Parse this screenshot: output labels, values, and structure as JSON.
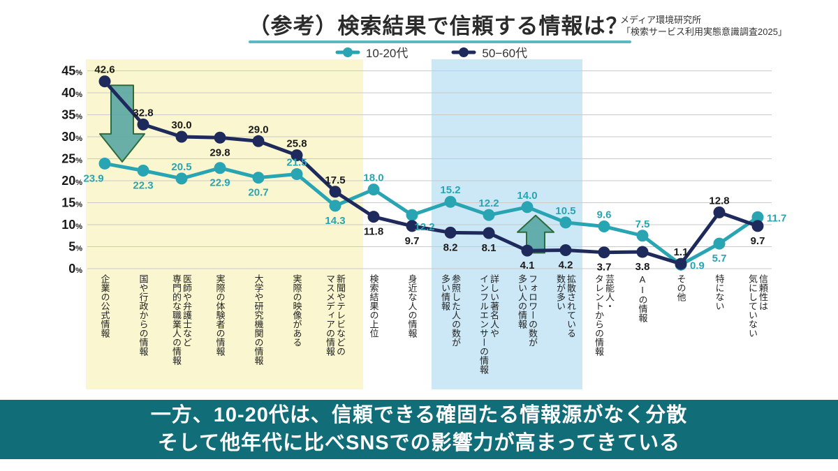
{
  "title": "（参考）検索結果で信頼する情報は？",
  "source": {
    "line1": "メディア環境研究所",
    "line2": "「検索サービス利用実態意識調査2025」"
  },
  "legend": [
    {
      "label": "10-20代",
      "color": "#29a4b2"
    },
    {
      "label": "50−60代",
      "color": "#1f2a5c"
    }
  ],
  "banner": {
    "line1": "一方、10-20代は、信頼できる確固たる情報源がなく分散",
    "line2": "そして他年代に比べSNSでの影響力が高まってきている",
    "bg": "#116e79"
  },
  "chart_data": {
    "type": "line",
    "title": "（参考）検索結果で信頼する情報は？",
    "ylim": [
      0,
      45
    ],
    "ytick_step": 5,
    "ytick_suffix": "%",
    "grid": true,
    "legend_position": "top",
    "categories": [
      [
        "企業の公式情報"
      ],
      [
        "国や行政からの情報"
      ],
      [
        "医師や弁護士など",
        "専門的な職業人の情報"
      ],
      [
        "実際の体験者の情報"
      ],
      [
        "大学や研究機関の情報"
      ],
      [
        "実際の映像がある"
      ],
      [
        "新聞やテレビなどの",
        "マスメディアの情報"
      ],
      [
        "検索結果の上位"
      ],
      [
        "身近な人の情報"
      ],
      [
        "参照した人の数が",
        "多い情報"
      ],
      [
        "詳しい著名人や",
        "インフルエンサーの情報"
      ],
      [
        "フォロワーの数が",
        "多い人の情報"
      ],
      [
        "拡散されている",
        "数が多い"
      ],
      [
        "芸能人・",
        "タレントからの情報"
      ],
      [
        "AIの情報"
      ],
      [
        "その他"
      ],
      [
        "特にない"
      ],
      [
        "信頼性は",
        "気にしていない"
      ]
    ],
    "series": [
      {
        "name": "10-20代",
        "color": "#29a4b2",
        "label_color": "#29a4b2",
        "values": [
          23.9,
          22.3,
          20.5,
          22.9,
          20.7,
          21.5,
          14.3,
          18.0,
          12.2,
          15.2,
          12.2,
          14.0,
          10.5,
          9.6,
          7.5,
          0.9,
          5.7,
          11.7
        ],
        "label_positions": [
          "below-left",
          "below",
          "above",
          "below",
          "below",
          "above",
          "below",
          "above",
          "below-right",
          "above",
          "above",
          "above",
          "above",
          "above",
          "above",
          "right",
          "below",
          "right"
        ]
      },
      {
        "name": "50−60代",
        "color": "#1f2a5c",
        "label_color": "#1a1a1a",
        "values": [
          42.6,
          32.8,
          30.0,
          29.8,
          29.0,
          25.8,
          17.5,
          11.8,
          9.7,
          8.2,
          8.1,
          4.1,
          4.2,
          3.7,
          3.8,
          1.1,
          12.8,
          9.7
        ],
        "label_positions": [
          "above",
          "above",
          "above",
          "below",
          "above",
          "above",
          "above",
          "below",
          "below",
          "below",
          "below",
          "below",
          "below",
          "below",
          "below",
          "above",
          "above",
          "below"
        ]
      }
    ],
    "highlights": [
      {
        "name": "yellow-highlight-region",
        "from": 0,
        "to": 6,
        "color": "#faf7d0",
        "pad_left": 27,
        "pad_right": 40
      },
      {
        "name": "blue-highlight-region",
        "from": 9,
        "to": 12,
        "color": "#cce8f6",
        "pad_left": 27,
        "pad_right": 24
      }
    ],
    "annotations": [
      {
        "direction": "down",
        "category": 0,
        "dx": 25,
        "from_pct": 41.7,
        "to_pct": 24.3
      },
      {
        "direction": "up",
        "category": 11,
        "dx": 12,
        "from_pct": 3.6,
        "to_pct": 12.1
      }
    ],
    "arrow_style": {
      "fill": "#54a5a2",
      "stroke": "#2d6b3c"
    }
  }
}
